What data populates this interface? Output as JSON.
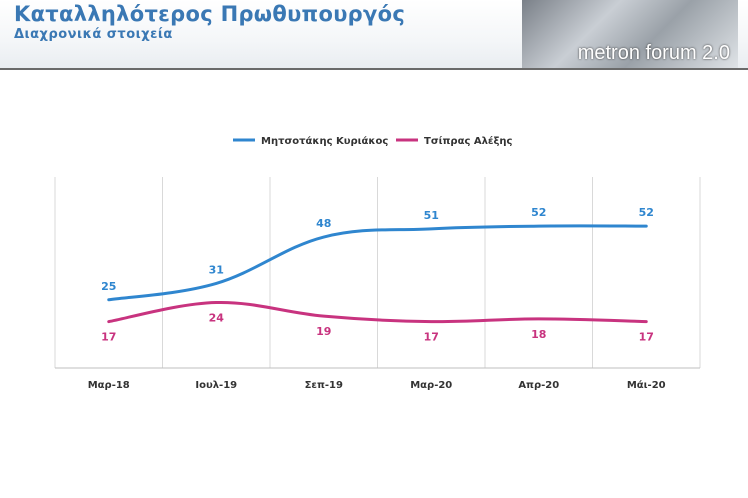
{
  "header": {
    "title": "Καταλληλότερος Πρωθυπουργός",
    "subtitle": "Διαχρονικά στοιχεία",
    "logo_text": "metron forum 2.0"
  },
  "chart_data": {
    "type": "line",
    "categories": [
      "Μαρ-18",
      "Ιουλ-19",
      "Σεπ-19",
      "Μαρ-20",
      "Απρ-20",
      "Μάι-20"
    ],
    "series": [
      {
        "name": "Μητσοτάκης Κυριάκος",
        "color": "#2f86cf",
        "values": [
          25,
          31,
          48,
          51,
          52,
          52
        ]
      },
      {
        "name": "Τσίπρας Αλέξης",
        "color": "#c8337f",
        "values": [
          17,
          24,
          19,
          17,
          18,
          17
        ]
      }
    ],
    "ylim": [
      0,
      70
    ],
    "grid": "vertical",
    "legend_position": "top-center",
    "data_labels": true,
    "xlabel": "",
    "ylabel": ""
  }
}
